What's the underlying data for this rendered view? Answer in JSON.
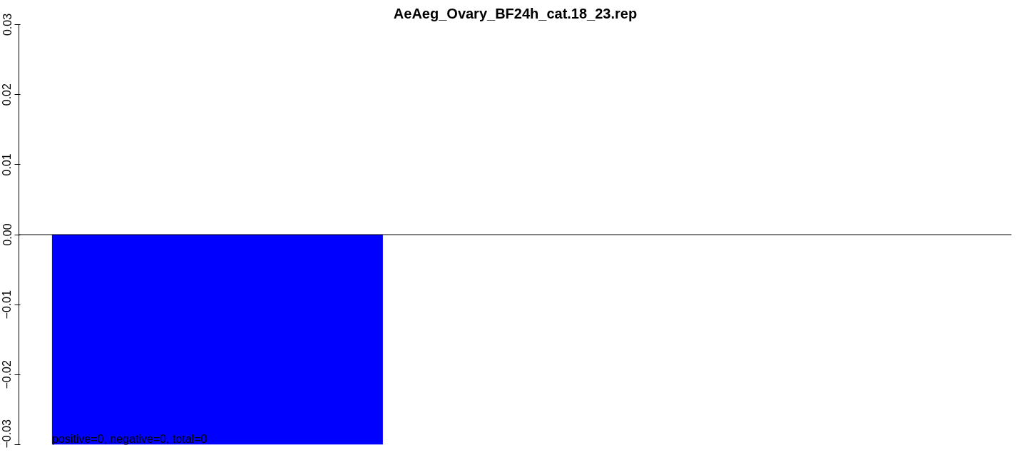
{
  "chart_data": {
    "type": "bar",
    "title": "AeAeg_Ovary_BF24h_cat.18_23.rep",
    "categories": [
      null
    ],
    "values": [
      -0.03
    ],
    "color": "#0000ff",
    "ylim": [
      -0.03,
      0.03
    ],
    "yticks": [
      {
        "value": -0.03,
        "label": "−0.03"
      },
      {
        "value": -0.02,
        "label": "−0.02"
      },
      {
        "value": -0.01,
        "label": "−0.01"
      },
      "0.00",
      "0.01",
      "0.02",
      "0.03"
    ],
    "ref_lines": [
      {
        "axis": "y",
        "value": 0,
        "color": "#000000"
      }
    ],
    "annotations": [
      "positive=0, negative=0, total=0"
    ],
    "grid": false,
    "tick_labels": "y"
  }
}
